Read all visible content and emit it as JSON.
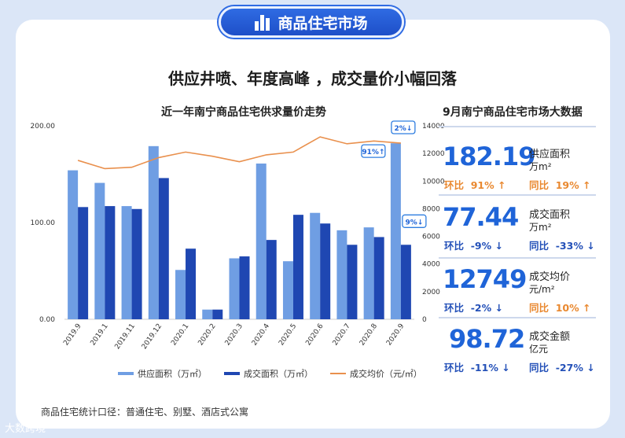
{
  "banner": {
    "title": "商品住宅市场"
  },
  "headline": "供应井喷、年度高峰 ，成交量价小幅回落",
  "chart_data": {
    "type": "bar",
    "title": "近一年南宁商品住宅供求量价走势",
    "categories": [
      "2019.9",
      "2019.1",
      "2019.11",
      "2019.12",
      "2020.1",
      "2020.2",
      "2020.3",
      "2020.4",
      "2020.5",
      "2020.6",
      "2020.7",
      "2020.8",
      "2020.9"
    ],
    "series": [
      {
        "name": "供应面积（万㎡）",
        "type": "bar",
        "axis": "left",
        "color": "#6f9ee3",
        "values": [
          154,
          141,
          117,
          179,
          51,
          10,
          63,
          161,
          60,
          110,
          92,
          95,
          182
        ]
      },
      {
        "name": "成交面积（万㎡）",
        "type": "bar",
        "axis": "left",
        "color": "#1f47b2",
        "values": [
          116,
          117,
          114,
          146,
          73,
          10,
          65,
          82,
          108,
          99,
          77,
          85,
          77
        ]
      },
      {
        "name": "成交均价（元/㎡）",
        "type": "line",
        "axis": "right",
        "color": "#e9904d",
        "values": [
          11500,
          10900,
          11000,
          11700,
          12100,
          11800,
          11400,
          11900,
          12100,
          13200,
          12700,
          12900,
          12749
        ]
      }
    ],
    "y_left": {
      "range": [
        0,
        200
      ],
      "ticks": [
        "0.00",
        "100.00",
        "200.00"
      ]
    },
    "y_right": {
      "range": [
        0,
        14000
      ],
      "ticks": [
        "0",
        "2000",
        "4000",
        "6000",
        "8000",
        "10000",
        "12000",
        "14000"
      ]
    },
    "annotations": [
      {
        "text": "2%",
        "arrow": "down"
      },
      {
        "text": "91%",
        "arrow": "up"
      },
      {
        "text": "9%",
        "arrow": "down"
      }
    ],
    "grid": false,
    "legend": "bottom"
  },
  "panel": {
    "title": "9月南宁商品住宅市场大数据",
    "stats": [
      {
        "value": "182.19",
        "label": "供应面积",
        "unit": "万m²",
        "mom_label": "环比",
        "mom": "91%",
        "mom_dir": "up",
        "yoy_label": "同比",
        "yoy": "19%",
        "yoy_dir": "up"
      },
      {
        "value": "77.44",
        "label": "成交面积",
        "unit": "万m²",
        "mom_label": "环比",
        "mom": "-9%",
        "mom_dir": "down",
        "yoy_label": "同比",
        "yoy": "-33%",
        "yoy_dir": "down"
      },
      {
        "value": "12749",
        "label": "成交均价",
        "unit": "元/m²",
        "mom_label": "环比",
        "mom": "-2%",
        "mom_dir": "down",
        "yoy_label": "同比",
        "yoy": "10%",
        "yoy_dir": "up"
      },
      {
        "value": "98.72",
        "label": "成交金额",
        "unit": "亿元",
        "mom_label": "环比",
        "mom": "-11%",
        "mom_dir": "down",
        "yoy_label": "同比",
        "yoy": "-27%",
        "yoy_dir": "down"
      }
    ]
  },
  "footnote": "商品住宅统计口径：普通住宅、别墅、酒店式公寓",
  "brand": "大数跨境",
  "arrows": {
    "up": "↑",
    "down": "↓"
  }
}
